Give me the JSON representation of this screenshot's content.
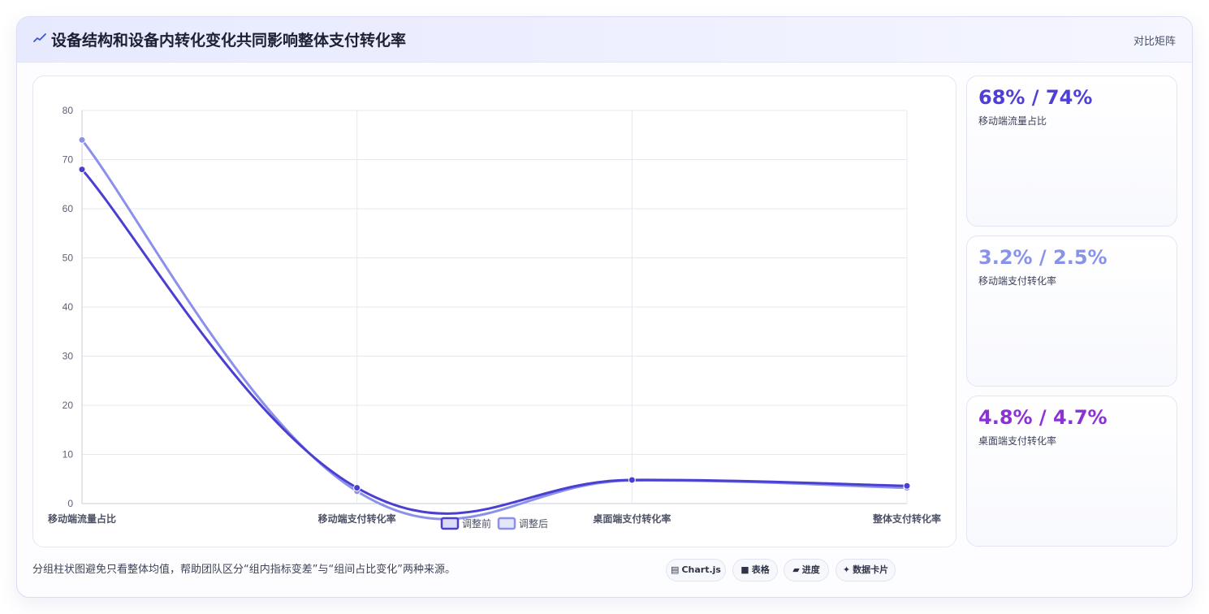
{
  "header": {
    "title": "设备结构和设备内转化变化共同影响整体支付转化率",
    "tag": "对比矩阵",
    "icon": "trend-icon"
  },
  "colors": {
    "before": "#4b3fd1",
    "after": "#8b90eb",
    "stat1": "#4f3fd6",
    "stat2": "#8893e8",
    "stat3": "#8a32d6"
  },
  "stats": [
    {
      "value": "68% / 74%",
      "label": "移动端流量占比"
    },
    {
      "value": "3.2% / 2.5%",
      "label": "移动端支付转化率"
    },
    {
      "value": "4.8% / 4.7%",
      "label": "桌面端支付转化率"
    }
  ],
  "footnote": "分组柱状图避免只看整体均值，帮助团队区分“组内指标变差”与“组间占比变化”两种来源。",
  "pills": [
    {
      "icon": "chart-icon",
      "glyph": "▤",
      "label": "Chart.js"
    },
    {
      "icon": "table-icon",
      "glyph": "■",
      "label": "表格"
    },
    {
      "icon": "progress-icon",
      "glyph": "▰",
      "label": "进度"
    },
    {
      "icon": "card-icon",
      "glyph": "✦",
      "label": "数据卡片"
    }
  ],
  "chart_data": {
    "type": "line",
    "categories": [
      "移动端流量占比",
      "移动端支付转化率",
      "桌面端支付转化率",
      "整体支付转化率"
    ],
    "series": [
      {
        "name": "调整前",
        "values": [
          68,
          3.2,
          4.8,
          3.6
        ]
      },
      {
        "name": "调整后",
        "values": [
          74,
          2.5,
          4.7,
          3.2
        ]
      }
    ],
    "ylim": [
      0,
      80
    ],
    "yticks": [
      0,
      10,
      20,
      30,
      40,
      50,
      60,
      70,
      80
    ],
    "grid": true,
    "legend": "bottom",
    "curve": "smooth"
  }
}
